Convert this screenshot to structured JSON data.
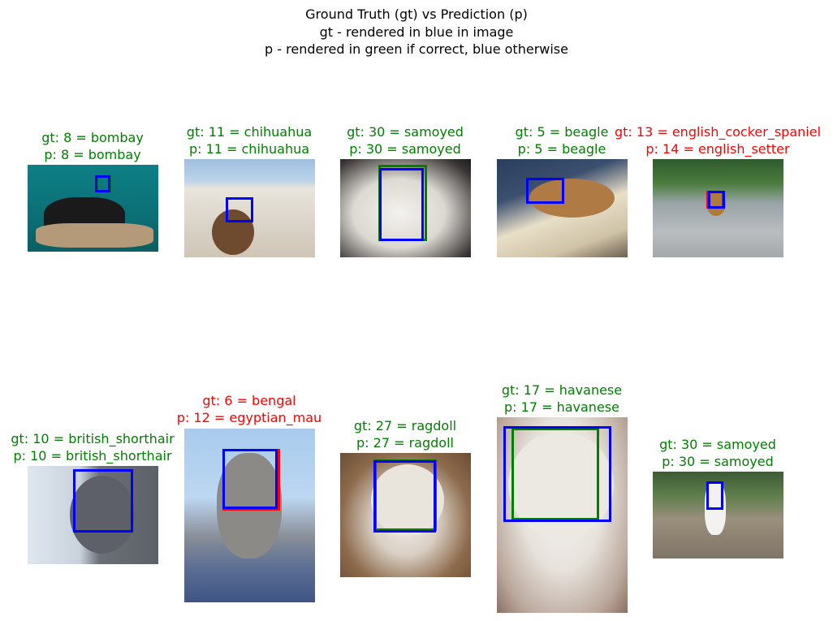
{
  "title": {
    "line1": "Ground Truth (gt) vs Prediction (p)",
    "line2": "gt - rendered in blue in image",
    "line3": "p - rendered in green if correct, blue otherwise"
  },
  "colors": {
    "gt_box": "#0000ff",
    "pred_correct": "#008000",
    "label_correct": "#008000",
    "label_wrong": "#ff0000"
  },
  "panels": [
    {
      "gt": "gt: 8 = bombay",
      "p": "p: 8 = bombay",
      "correct": true
    },
    {
      "gt": "gt: 11 = chihuahua",
      "p": "p: 11 = chihuahua",
      "correct": true
    },
    {
      "gt": "gt: 30 = samoyed",
      "p": "p: 30 = samoyed",
      "correct": true
    },
    {
      "gt": "gt: 5 = beagle",
      "p": "p: 5 = beagle",
      "correct": true
    },
    {
      "gt": "gt: 13 = english_cocker_spaniel",
      "p": "p: 14 = english_setter",
      "correct": false
    },
    {
      "gt": "gt: 10 = british_shorthair",
      "p": "p: 10 = british_shorthair",
      "correct": true
    },
    {
      "gt": "gt: 6 = bengal",
      "p": "p: 12 = egyptian_mau",
      "correct": false
    },
    {
      "gt": "gt: 27 = ragdoll",
      "p": "p: 27 = ragdoll",
      "correct": true
    },
    {
      "gt": "gt: 17 = havanese",
      "p": "p: 17 = havanese",
      "correct": true
    },
    {
      "gt": "gt: 30 = samoyed",
      "p": "p: 30 = samoyed",
      "correct": true
    }
  ],
  "chart_data": {
    "type": "image-grid",
    "rows": 2,
    "cols": 5,
    "items": [
      {
        "gt_label": "bombay",
        "gt_id": 8,
        "pred_label": "bombay",
        "pred_id": 8
      },
      {
        "gt_label": "chihuahua",
        "gt_id": 11,
        "pred_label": "chihuahua",
        "pred_id": 11
      },
      {
        "gt_label": "samoyed",
        "gt_id": 30,
        "pred_label": "samoyed",
        "pred_id": 30
      },
      {
        "gt_label": "beagle",
        "gt_id": 5,
        "pred_label": "beagle",
        "pred_id": 5
      },
      {
        "gt_label": "english_cocker_spaniel",
        "gt_id": 13,
        "pred_label": "english_setter",
        "pred_id": 14
      },
      {
        "gt_label": "british_shorthair",
        "gt_id": 10,
        "pred_label": "british_shorthair",
        "pred_id": 10
      },
      {
        "gt_label": "bengal",
        "gt_id": 6,
        "pred_label": "egyptian_mau",
        "pred_id": 12
      },
      {
        "gt_label": "ragdoll",
        "gt_id": 27,
        "pred_label": "ragdoll",
        "pred_id": 27
      },
      {
        "gt_label": "havanese",
        "gt_id": 17,
        "pred_label": "havanese",
        "pred_id": 17
      },
      {
        "gt_label": "samoyed",
        "gt_id": 30,
        "pred_label": "samoyed",
        "pred_id": 30
      }
    ]
  }
}
